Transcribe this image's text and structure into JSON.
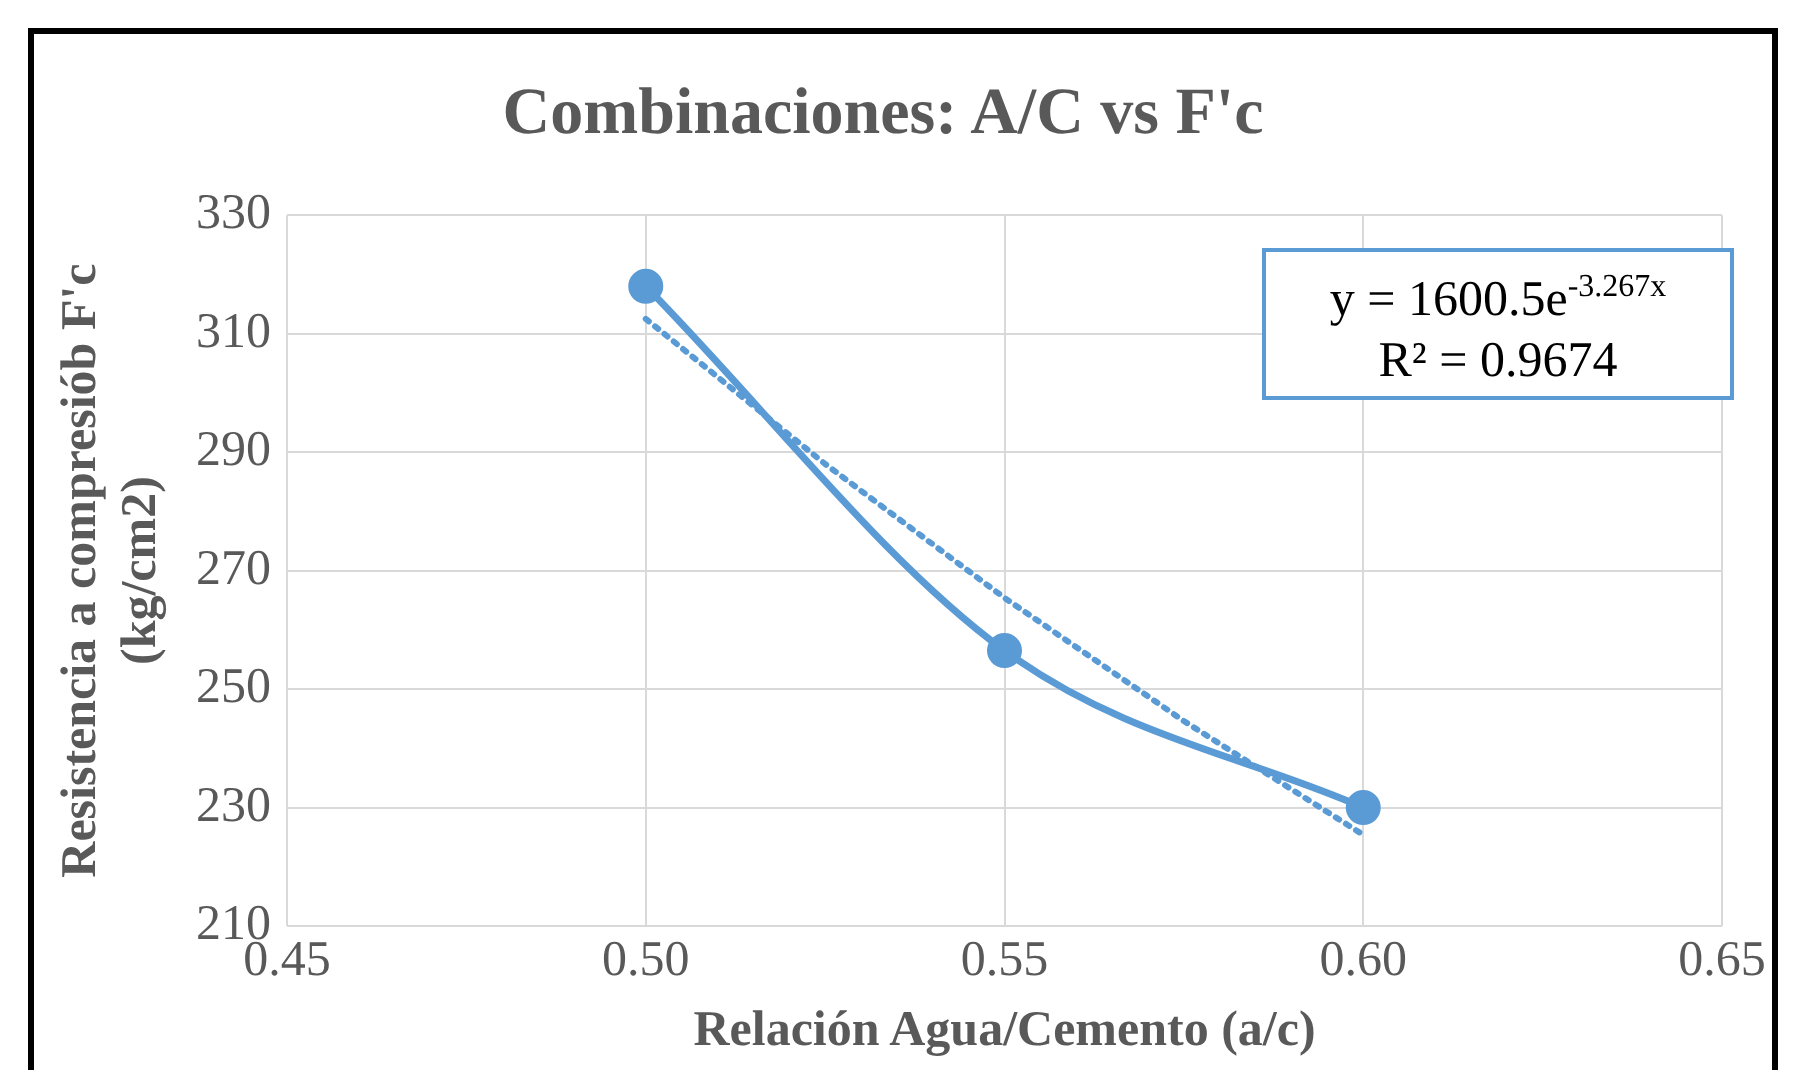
{
  "chart_data": {
    "type": "line",
    "title": "Combinaciones: A/C vs F'c",
    "xlabel": "Relación Agua/Cemento (a/c)",
    "ylabel": "Resistencia a compresiób F'c\n(kg/cm2)",
    "xlim": [
      0.45,
      0.65
    ],
    "xticks": [
      {
        "value": 0.45,
        "label": "0.45"
      },
      {
        "value": 0.5,
        "label": "0.50"
      },
      {
        "value": 0.55,
        "label": "0.55"
      },
      {
        "value": 0.6,
        "label": "0.60"
      },
      {
        "value": 0.65,
        "label": "0.65"
      }
    ],
    "ylim": [
      210,
      330
    ],
    "yticks": [
      210,
      230,
      250,
      270,
      290,
      310,
      330
    ],
    "grid": true,
    "legend": false,
    "series": [
      {
        "type": "line",
        "color": "#5b9bd5",
        "x": [
          0.5,
          0.55,
          0.6
        ],
        "values": [
          318,
          256.5,
          230
        ],
        "marker": "circle",
        "line_style": "solid"
      },
      {
        "type": "line",
        "color": "#5b9bd5",
        "x": [
          0.5,
          0.525,
          0.55,
          0.575,
          0.6
        ],
        "values": [
          312.5,
          288,
          265.4,
          244.6,
          225.4
        ],
        "marker": "none",
        "line_style": "dotted"
      }
    ],
    "annotations": [
      "y = 1600.5e$^{-3.267x}$",
      "R² = 0.9674"
    ]
  }
}
